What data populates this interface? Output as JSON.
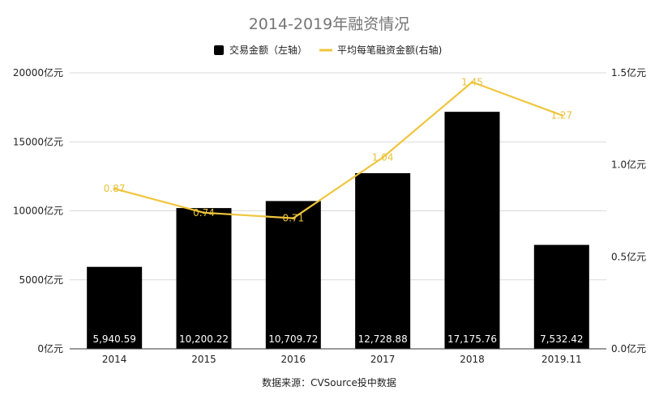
{
  "chart_data": {
    "type": "bar",
    "title": "2014-2019年融资情况",
    "categories": [
      "2014",
      "2015",
      "2016",
      "2017",
      "2018",
      "2019.11"
    ],
    "series": [
      {
        "name": "交易金额（左轴）",
        "type": "bar",
        "axis": "left",
        "color": "#000000",
        "values": [
          5940.59,
          10200.22,
          10709.72,
          12728.88,
          17175.76,
          7532.42
        ],
        "labels": [
          "5,940.59",
          "10,200.22",
          "10,709.72",
          "12,728.88",
          "17,175.76",
          "7,532.42"
        ]
      },
      {
        "name": "平均每笔融资金额(右轴)",
        "type": "line",
        "axis": "right",
        "color": "#f0c53c",
        "values": [
          0.87,
          0.74,
          0.71,
          1.04,
          1.45,
          1.27
        ],
        "labels": [
          "0.87",
          "0.74",
          "0.71",
          "1.04",
          "1.45",
          "1.27"
        ]
      }
    ],
    "y_left": {
      "ylim": [
        0,
        20000
      ],
      "ticks": [
        0,
        5000,
        10000,
        15000,
        20000
      ],
      "tick_labels": [
        "0亿元",
        "5000亿元",
        "10000亿元",
        "15000亿元",
        "20000亿元"
      ]
    },
    "y_right": {
      "ylim": [
        0,
        1.5
      ],
      "ticks": [
        0,
        0.5,
        1.0,
        1.5
      ],
      "tick_labels": [
        "0.0亿元",
        "0.5亿元",
        "1.0亿元",
        "1.5亿元"
      ]
    },
    "legend_position": "top-center",
    "grid": true,
    "source": "数据来源：CVSource投中数据"
  }
}
